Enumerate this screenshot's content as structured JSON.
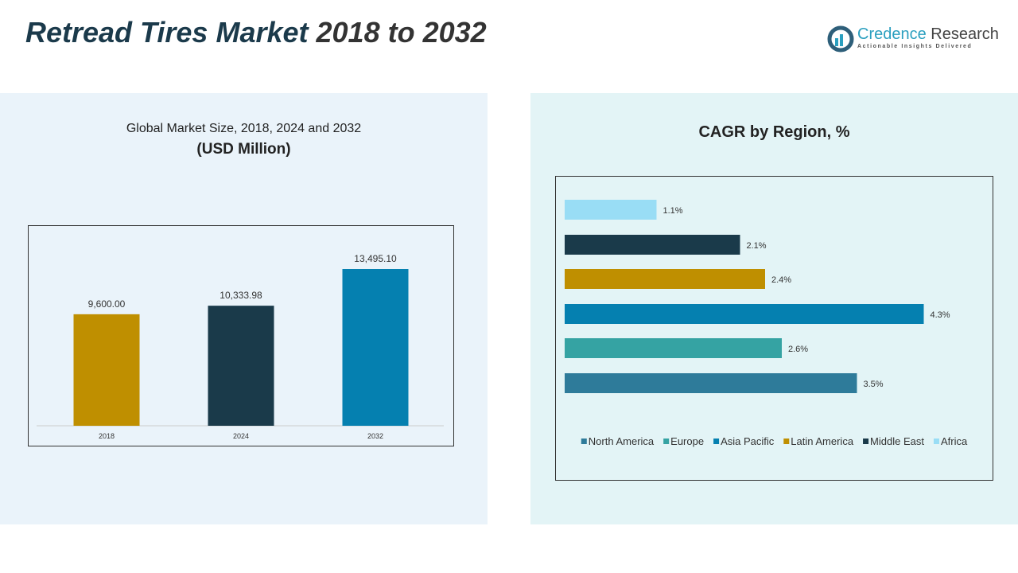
{
  "header": {
    "title_main": "Retread Tires Market",
    "title_years": "2018 to 2032"
  },
  "logo": {
    "name_part1": "Credence",
    "name_part2": "Research",
    "tagline": "Actionable Insights Delivered"
  },
  "chart_data": [
    {
      "type": "bar",
      "title": "Global Market Size, 2018, 2024 and 2032",
      "subtitle": "(USD Million)",
      "categories": [
        "2018",
        "2024",
        "2032"
      ],
      "values": [
        9600.0,
        10333.98,
        13495.1
      ],
      "labels": [
        "9,600.00",
        "10,333.98",
        "13,495.10"
      ],
      "colors": [
        "#bf8f00",
        "#1a3a4a",
        "#0580b0"
      ],
      "ylim": [
        0,
        13495.1
      ],
      "grid": false
    },
    {
      "type": "bar",
      "orientation": "horizontal",
      "title": "CAGR by Region, %",
      "categories": [
        "Africa",
        "Middle East",
        "Latin America",
        "Asia Pacific",
        "Europe",
        "North America"
      ],
      "values": [
        1.1,
        2.1,
        2.4,
        4.3,
        2.6,
        3.5
      ],
      "labels": [
        "1.1%",
        "2.1%",
        "2.4%",
        "4.3%",
        "2.6%",
        "3.5%"
      ],
      "colors": [
        "#99ddf5",
        "#1a3a4a",
        "#bf8f00",
        "#0580b0",
        "#35a3a3",
        "#2e7b9a"
      ],
      "legend": {
        "position": "bottom",
        "entries": [
          "North America",
          "Europe",
          "Asia Pacific",
          "Latin America",
          "Middle East",
          "Africa"
        ],
        "colors": [
          "#2e7b9a",
          "#35a3a3",
          "#0580b0",
          "#bf8f00",
          "#1a3a4a",
          "#99ddf5"
        ]
      },
      "grid": false
    }
  ]
}
